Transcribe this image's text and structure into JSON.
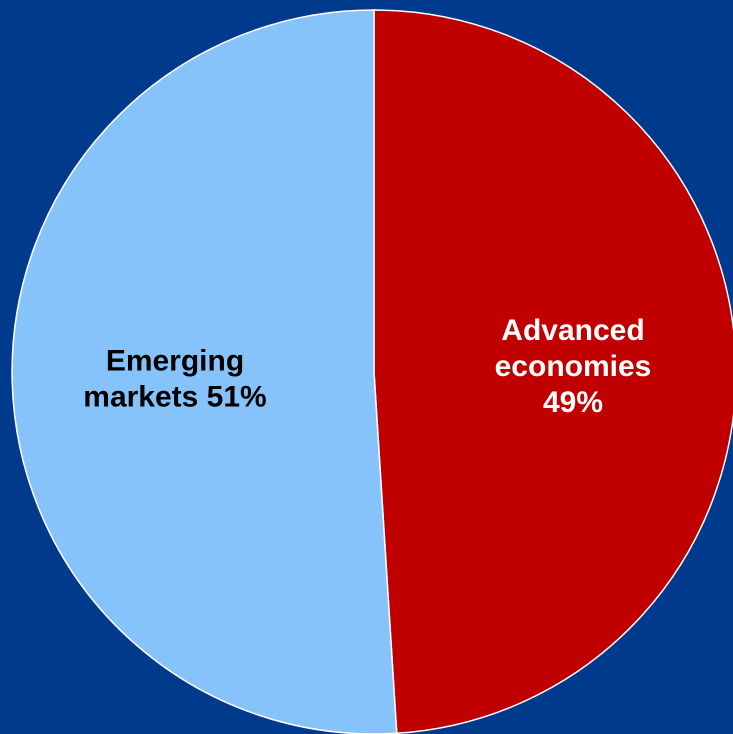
{
  "chart_data": {
    "type": "pie",
    "slices": [
      {
        "name": "Advanced economies",
        "value": 49,
        "label_lines": [
          "Advanced",
          "economies",
          "49%"
        ],
        "color": "#c00000",
        "label_color": "#ffffff"
      },
      {
        "name": "Emerging markets",
        "value": 51,
        "label_lines": [
          "Emerging",
          "markets 51%"
        ],
        "color": "#87c3fb",
        "label_color": "#000000"
      }
    ],
    "start_angle_deg": 0,
    "direction": "clockwise",
    "slice_border_color": "#ffffff",
    "background_color": "#003a8c",
    "legend": "none"
  }
}
